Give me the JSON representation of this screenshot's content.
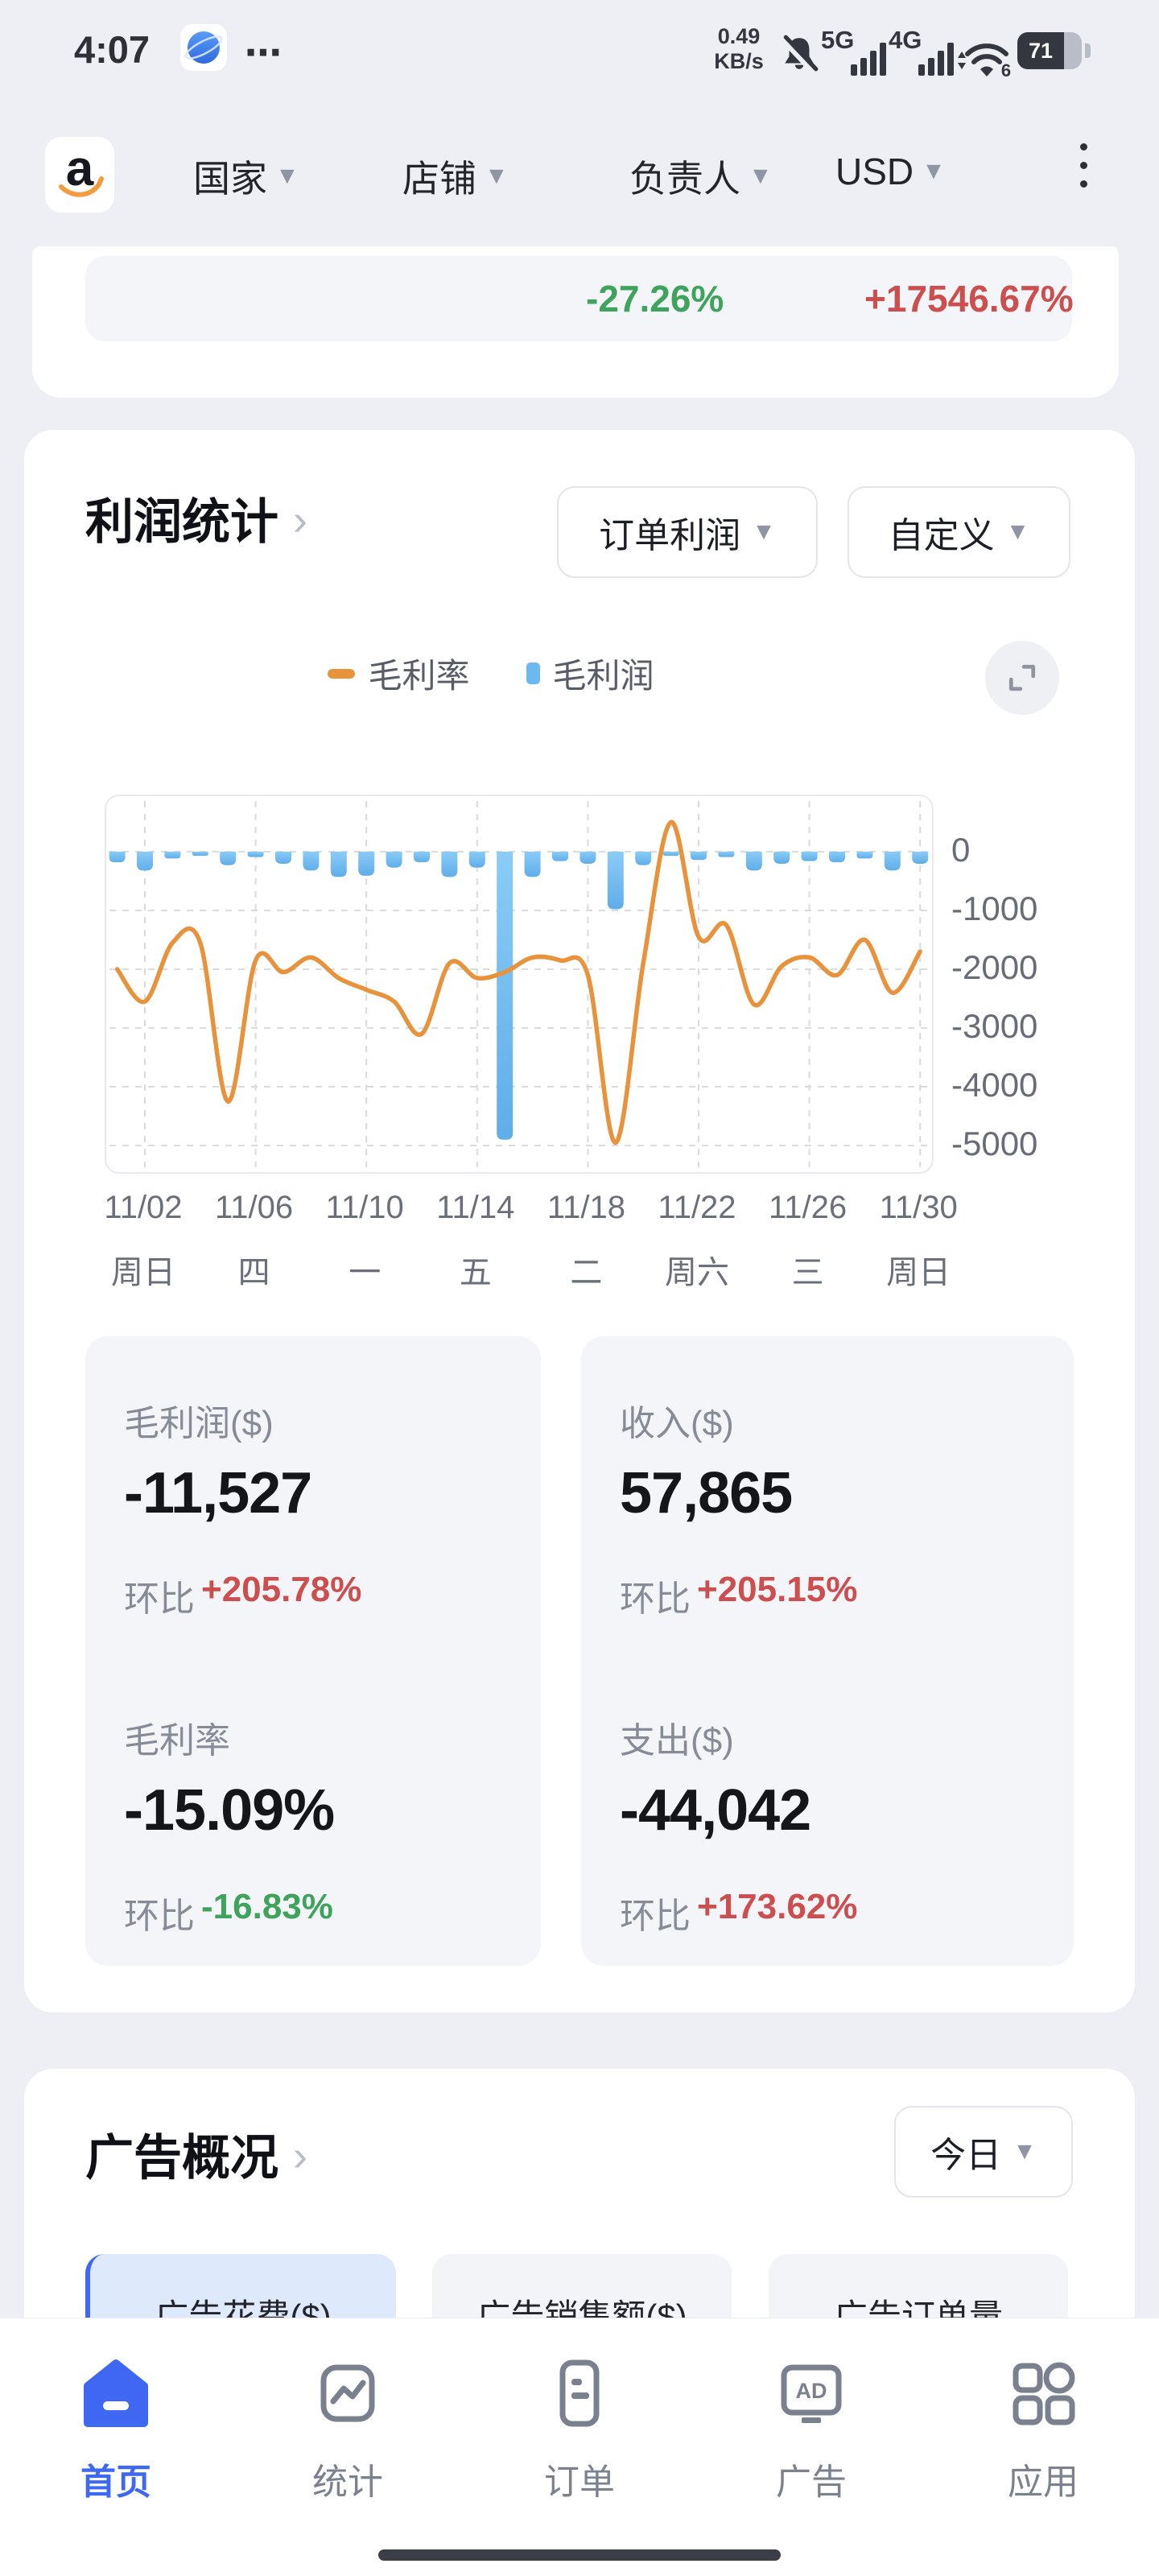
{
  "status_bar": {
    "time": "4:07",
    "more": "⋯",
    "net_speed_value": "0.49",
    "net_speed_unit": "KB/s",
    "sim1_type": "5G",
    "sim2_type": "4G",
    "wifi_badge": "6",
    "battery_level": "71"
  },
  "top_nav": {
    "logo_letter": "a",
    "menus": [
      {
        "label": "国家"
      },
      {
        "label": "店铺"
      },
      {
        "label": "负责人"
      },
      {
        "label": "USD"
      }
    ]
  },
  "summary_card": {
    "left_percent": "-27.26%",
    "right_percent": "+17546.67%",
    "left_color": "#3ea35c",
    "right_color": "#cc4e4e"
  },
  "profit": {
    "title": "利润统计",
    "chevron": "›",
    "filter_metric": "订单利润",
    "filter_range": "自定义",
    "legend": [
      {
        "label": "毛利率",
        "color": "#e8923c"
      },
      {
        "label": "毛利润",
        "color": "#6cb8f0"
      }
    ]
  },
  "chart_data": {
    "type": "bar",
    "title": "",
    "xlabel": "",
    "ylabel": "",
    "ylim": [
      945,
      -5500
    ],
    "grid": true,
    "legend_position": "top",
    "yaxis_side": "right",
    "ytick_labels": [
      "0",
      "-1000",
      "-2000",
      "-3000",
      "-4000",
      "-5000"
    ],
    "ytick_values": [
      0,
      -1000,
      -2000,
      -3000,
      -4000,
      -5000
    ],
    "x": [
      "11/01",
      "11/02",
      "11/03",
      "11/04",
      "11/05",
      "11/06",
      "11/07",
      "11/08",
      "11/09",
      "11/10",
      "11/11",
      "11/12",
      "11/13",
      "11/14",
      "11/15",
      "11/16",
      "11/17",
      "11/18",
      "11/19",
      "11/20",
      "11/21",
      "11/22",
      "11/23",
      "11/24",
      "11/25",
      "11/26",
      "11/27",
      "11/28",
      "11/29",
      "11/30"
    ],
    "xticks": [
      {
        "day": 2,
        "date": "11/02",
        "weekday": "周日"
      },
      {
        "day": 6,
        "date": "11/06",
        "weekday": "四"
      },
      {
        "day": 10,
        "date": "11/10",
        "weekday": "一"
      },
      {
        "day": 14,
        "date": "11/14",
        "weekday": "五"
      },
      {
        "day": 18,
        "date": "11/18",
        "weekday": "二"
      },
      {
        "day": 22,
        "date": "11/22",
        "weekday": "周六"
      },
      {
        "day": 26,
        "date": "11/26",
        "weekday": "三"
      },
      {
        "day": 30,
        "date": "11/30",
        "weekday": "周日"
      }
    ],
    "series": [
      {
        "name": "毛利润",
        "kind": "bar",
        "color": "#6cb8f0",
        "values": [
          -180,
          -320,
          -115,
          -70,
          -230,
          -90,
          -205,
          -320,
          -430,
          -410,
          -270,
          -180,
          -430,
          -270,
          -4900,
          -430,
          -160,
          -205,
          -980,
          -230,
          -70,
          -140,
          -90,
          -320,
          -205,
          -160,
          -180,
          -115,
          -320,
          -205
        ]
      },
      {
        "name": "毛利率",
        "kind": "line",
        "color": "#e8923c",
        "axis": "hidden-percent-axis",
        "values": [
          -2000,
          -2550,
          -1550,
          -1550,
          -4250,
          -1850,
          -2050,
          -1800,
          -2150,
          -2350,
          -2550,
          -3100,
          -1900,
          -2150,
          -2050,
          -1800,
          -1850,
          -2100,
          -4950,
          -1900,
          500,
          -1450,
          -1250,
          -2600,
          -1950,
          -1800,
          -2100,
          -1500,
          -2400,
          -1700
        ]
      }
    ]
  },
  "stats": {
    "left": [
      {
        "label": "毛利润($)",
        "value": "-11,527",
        "change_prefix": "环比",
        "change": "+205.78%",
        "change_color": "#cc4e4e"
      },
      {
        "label": "毛利率",
        "value": "-15.09%",
        "change_prefix": "环比",
        "change": "-16.83%",
        "change_color": "#3ea35c"
      }
    ],
    "right": [
      {
        "label": "收入($)",
        "value": "57,865",
        "change_prefix": "环比",
        "change": "+205.15%",
        "change_color": "#cc4e4e"
      },
      {
        "label": "支出($)",
        "value": "-44,042",
        "change_prefix": "环比",
        "change": "+173.62%",
        "change_color": "#cc4e4e"
      }
    ]
  },
  "ads": {
    "title": "广告概况",
    "chevron": "›",
    "period": "今日",
    "tabs": [
      {
        "label": "广告花费($)",
        "active": true
      },
      {
        "label": "广告销售额($)",
        "active": false
      },
      {
        "label": "广告订单量",
        "active": false
      }
    ]
  },
  "bottom_nav": {
    "ad_icon_text": "AD",
    "items": [
      {
        "label": "首页",
        "active": true
      },
      {
        "label": "统计",
        "active": false
      },
      {
        "label": "订单",
        "active": false
      },
      {
        "label": "广告",
        "active": false
      },
      {
        "label": "应用",
        "active": false
      }
    ]
  },
  "colors": {
    "green": "#3ea35c",
    "red": "#cc4e4e",
    "bar_blue": "#6cb8f0",
    "line_orange": "#e8923c",
    "nav_blue": "#3e68f2"
  }
}
